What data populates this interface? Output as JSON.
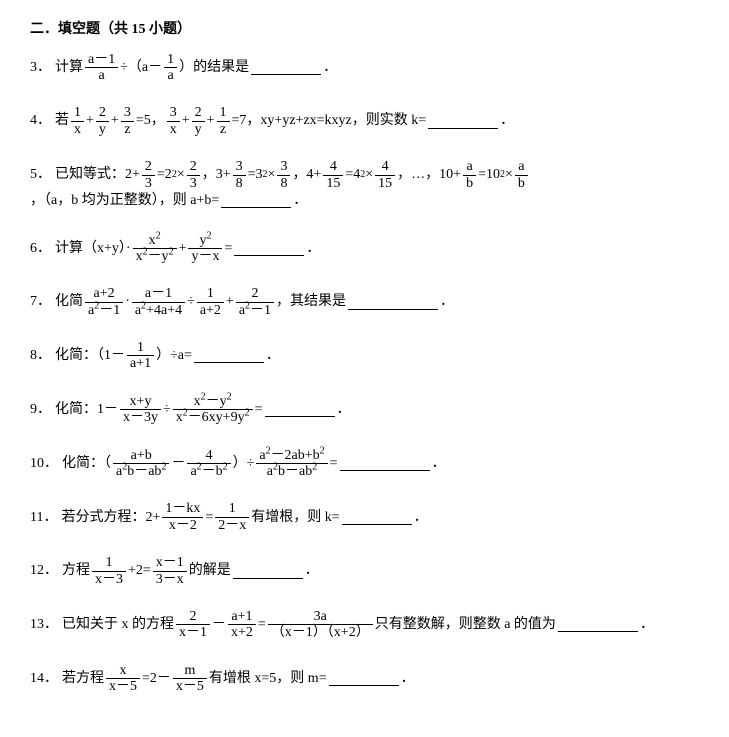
{
  "section_title": "二．填空题（共 15 小题）",
  "problems": {
    "p3": {
      "num": "3．",
      "t1": "计算",
      "fracA": {
        "num": "a－1",
        "den": "a"
      },
      "t2": "÷（a－",
      "fracB": {
        "num": "1",
        "den": "a"
      },
      "t3": "）的结果是",
      "period": "．"
    },
    "p4": {
      "num": "4．",
      "t1": "若",
      "f1": {
        "num": "1",
        "den": "x"
      },
      "t2": "+",
      "f2": {
        "num": "2",
        "den": "y"
      },
      "t3": "+",
      "f3": {
        "num": "3",
        "den": "z"
      },
      "t4": "=5，",
      "f4": {
        "num": "3",
        "den": "x"
      },
      "t5": "+",
      "f5": {
        "num": "2",
        "den": "y"
      },
      "t6": "+",
      "f6": {
        "num": "1",
        "den": "z"
      },
      "t7": "=7，xy+yz+zx=kxyz，则实数 k=",
      "period": "．"
    },
    "p5": {
      "num": "5．",
      "t1": "已知等式：2+",
      "f1": {
        "num": "2",
        "den": "3"
      },
      "t2": "=2",
      "sup2": "2",
      "t2b": "×",
      "f2": {
        "num": "2",
        "den": "3"
      },
      "t3": "，3+",
      "f3": {
        "num": "3",
        "den": "8"
      },
      "t4": "=3",
      "sup3": "2",
      "t4b": "×",
      "f4": {
        "num": "3",
        "den": "8"
      },
      "t5": "，4+",
      "f5": {
        "num": "4",
        "den": "15"
      },
      "t6": "=4",
      "sup4": "2",
      "t6b": "×",
      "f6": {
        "num": "4",
        "den": "15"
      },
      "t7": "，…，10+",
      "f7": {
        "num": "a",
        "den": "b"
      },
      "t8": "=10",
      "sup5": "2",
      "t8b": "×",
      "f8": {
        "num": "a",
        "den": "b"
      },
      "t9": "，（a，b 均为正整数），则 a+b=",
      "period": "．"
    },
    "p6": {
      "num": "6．",
      "t1": "计算（x+y）·",
      "f1": {
        "num": "x",
        "sup1": "2",
        "den": "x",
        "sup1d": "2",
        "denb": "－y",
        "sup2d": "2"
      },
      "t2": "+",
      "f2": {
        "num": "y",
        "sup2": "2",
        "den": "y－x"
      },
      "t3": "=",
      "period": "．"
    },
    "p7": {
      "num": "7．",
      "t1": "化简",
      "f1": {
        "num": "a+2",
        "den": "a",
        "supd1": "2",
        "denb": "－1"
      },
      "t2": "·",
      "f2": {
        "num": "a－1",
        "den": "a",
        "supd2": "2",
        "denb": "+4a+4"
      },
      "t3": "÷",
      "f3": {
        "num": "1",
        "den": "a+2"
      },
      "t4": "+",
      "f4": {
        "num": "2",
        "den": "a",
        "supd3": "2",
        "denb": "－1"
      },
      "t5": "，其结果是",
      "period": "．"
    },
    "p8": {
      "num": "8．",
      "t1": "化简：（1－",
      "f1": {
        "num": "1",
        "den": "a+1"
      },
      "t2": "）÷a=",
      "period": "．"
    },
    "p9": {
      "num": "9．",
      "t1": "化简：1－",
      "f1": {
        "num": "x+y",
        "den": "x－3y"
      },
      "t2": "÷",
      "f2": {
        "num": "x",
        "sup1": "2",
        "numb": "－y",
        "sup2": "2",
        "den": "x",
        "supd1": "2",
        "denb": "－6xy+9y",
        "supd2": "2"
      },
      "t3": "=",
      "period": "．"
    },
    "p10": {
      "num": "10．",
      "t1": "化简：（",
      "f1": {
        "num": "a+b",
        "den": "a",
        "supd1": "2",
        "denb": "b－ab",
        "supd2": "2"
      },
      "t2": "－",
      "f2": {
        "num": "4",
        "den": "a",
        "supd1": "2",
        "denb": "－b",
        "supd2": "2"
      },
      "t3": "）÷",
      "f3": {
        "num": "a",
        "sup1": "2",
        "numb": "－2ab+b",
        "sup2": "2",
        "den": "a",
        "supd1": "2",
        "denb": "b－ab",
        "supd2": "2"
      },
      "t4": "=",
      "period": "．"
    },
    "p11": {
      "num": "11．",
      "t1": "若分式方程：2+",
      "f1": {
        "num": "1－kx",
        "den": "x－2"
      },
      "t2": "=",
      "f2": {
        "num": "1",
        "den": "2－x"
      },
      "t3": "有增根，则 k=",
      "period": "．"
    },
    "p12": {
      "num": "12．",
      "t1": "方程",
      "f1": {
        "num": "1",
        "den": "x－3"
      },
      "t2": "+2=",
      "f2": {
        "num": "x－1",
        "den": "3－x"
      },
      "t3": "的解是",
      "period": "．"
    },
    "p13": {
      "num": "13．",
      "t1": "已知关于 x 的方程",
      "f1": {
        "num": "2",
        "den": "x－1"
      },
      "t2": "－",
      "f2": {
        "num": "a+1",
        "den": "x+2"
      },
      "t3": "=",
      "f3": {
        "num": "3a",
        "den": "（x－1）（x+2）"
      },
      "t4": "只有整数解，则整数 a 的值为",
      "period": "．"
    },
    "p14": {
      "num": "14．",
      "t1": "若方程",
      "f1": {
        "num": "x",
        "den": "x－5"
      },
      "t2": "=2－",
      "f2": {
        "num": "m",
        "den": "x－5"
      },
      "t3": "有增根 x=5，则 m=",
      "period": "．"
    }
  }
}
